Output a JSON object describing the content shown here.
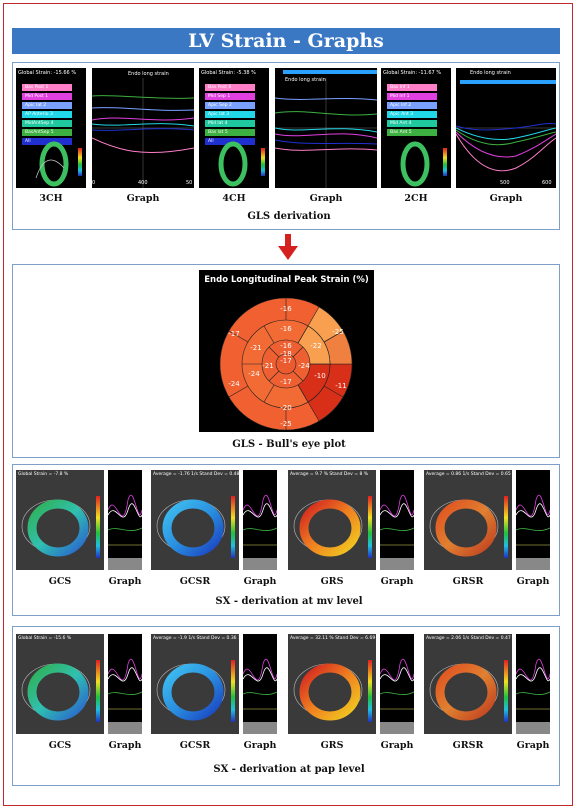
{
  "title": "LV Strain - Graphs",
  "gls": {
    "caption": "GLS derivation",
    "views": [
      {
        "label": "3CH",
        "global": "Global Strain: -15.66 %",
        "segments": [
          "Bas Post 1",
          "Mid Post 1",
          "Apic lat 2",
          "AP Anterio 3",
          "MidAntSep 4",
          "BasAntSep 5",
          "All"
        ],
        "seg_colors": [
          "#ff7ec8",
          "#e040e0",
          "#7aa0ff",
          "#20d8e8",
          "#20c8a0",
          "#3cb040",
          "#2030d0"
        ]
      },
      {
        "label": "4CH",
        "global": "Global Strain: -5.38 %",
        "segments": [
          "Bas Post 6",
          "Mid Sep 1",
          "Apic Sep 2",
          "Apic lat 3",
          "Mid lat 4",
          "Bas lat 5",
          "All"
        ],
        "seg_colors": [
          "#ff7ec8",
          "#e040e0",
          "#7aa0ff",
          "#20d8e8",
          "#20c8a0",
          "#3cb040",
          "#2030d0"
        ]
      },
      {
        "label": "2CH",
        "global": "Global Strain: -11.67 %",
        "segments": [
          "Bas Inf 1",
          "Mid Inf 1",
          "Apic Inf 2",
          "Apic Ant 3",
          "Mid Ant 4",
          "Bas Ant 5"
        ],
        "seg_colors": [
          "#ff7ec8",
          "#e040e0",
          "#7aa0ff",
          "#20d8e8",
          "#20c8a0",
          "#3cb040"
        ]
      }
    ],
    "graph_label": "Graph",
    "graph_title": "Endo long strain",
    "graph_ticks": [
      [
        "0",
        "400",
        "50"
      ],
      [
        "",
        "",
        ""
      ],
      [
        "",
        "500",
        "600"
      ]
    ]
  },
  "bullseye": {
    "title": "Endo Longitudinal Peak Strain (%)",
    "caption": "GLS - Bull's eye plot",
    "values": {
      "outer": [
        "-16",
        "-25",
        "-11",
        "-20",
        "-24",
        "-17"
      ],
      "mid": [
        "-16",
        "-22",
        "-10",
        "-17",
        "-24",
        "-21"
      ],
      "inner": [
        "-16",
        "-24",
        "-17",
        "-21"
      ],
      "apex": "-18",
      "outer_bottom": "-25"
    }
  },
  "sx_mv": {
    "caption": "SX - derivation at mv level",
    "items": [
      {
        "label": "GCS",
        "info": "Global Strain = -7.8 %"
      },
      {
        "label": "GCSR",
        "info": "Average = -1.76 1/s  Stand Dev = 0.48 1/s"
      },
      {
        "label": "GRS",
        "info": "Average = 9.7 %  Stand Dev = 8 %"
      },
      {
        "label": "GRSR",
        "info": "Average = 0.86 1/s  Stand Dev = 0.65 1/s"
      }
    ],
    "graph_label": "Graph"
  },
  "sx_pap": {
    "caption": "SX - derivation at pap level",
    "items": [
      {
        "label": "GCS",
        "info": "Global Strain = -15.6 %"
      },
      {
        "label": "GCSR",
        "info": "Average = -1.9 1/s  Stand Dev = 0.36 1/s"
      },
      {
        "label": "GRS",
        "info": "Average = 32.11 %  Stand Dev = 6.69 %"
      },
      {
        "label": "GRSR",
        "info": "Average = 2.06 1/s  Stand Dev = 0.47 1/s"
      }
    ],
    "graph_label": "Graph"
  },
  "arrow_icon": "down-arrow-icon",
  "colors": {
    "title_bar": "#3a78c3",
    "frame": "#c0282d",
    "arrow": "#d62020"
  }
}
